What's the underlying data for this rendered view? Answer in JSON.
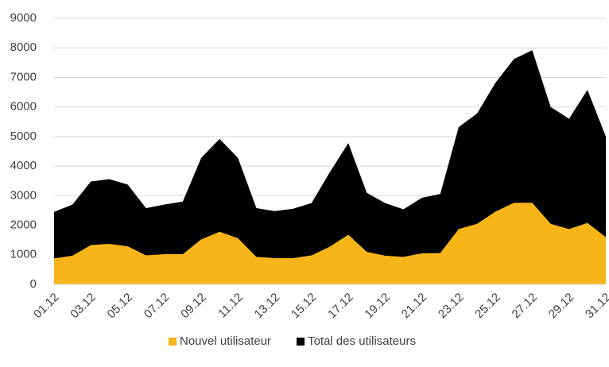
{
  "chart_data": {
    "type": "area",
    "categories": [
      "01.12",
      null,
      "03.12",
      null,
      "05.12",
      null,
      "07.12",
      null,
      "09.12",
      null,
      "11.12",
      null,
      "13.12",
      null,
      "15.12",
      null,
      "17.12",
      null,
      "19.12",
      null,
      "21.12",
      null,
      "23.12",
      null,
      "25.12",
      null,
      "27.12",
      null,
      "29.12",
      null,
      "31.12"
    ],
    "series": [
      {
        "name": "Nouvel utilisateur",
        "color": "#f7b519",
        "values": [
          880,
          970,
          1330,
          1370,
          1290,
          980,
          1020,
          1020,
          1520,
          1780,
          1560,
          930,
          890,
          890,
          980,
          1280,
          1680,
          1100,
          970,
          930,
          1050,
          1060,
          1870,
          2050,
          2460,
          2760,
          2760,
          2050,
          1870,
          2080,
          1600
        ]
      },
      {
        "name": "Total des utilisateurs",
        "color": "#000000",
        "values": [
          2450,
          2700,
          3480,
          3560,
          3380,
          2580,
          2700,
          2800,
          4280,
          4920,
          4280,
          2580,
          2480,
          2560,
          2750,
          3800,
          4780,
          3100,
          2750,
          2540,
          2930,
          3060,
          5320,
          5780,
          6820,
          7620,
          7920,
          6000,
          5600,
          6580,
          5000
        ]
      }
    ],
    "ylim": [
      0,
      9000
    ],
    "yticks": [
      0,
      1000,
      2000,
      3000,
      4000,
      5000,
      6000,
      7000,
      8000,
      9000
    ],
    "grid": true,
    "legend": "bottom"
  }
}
